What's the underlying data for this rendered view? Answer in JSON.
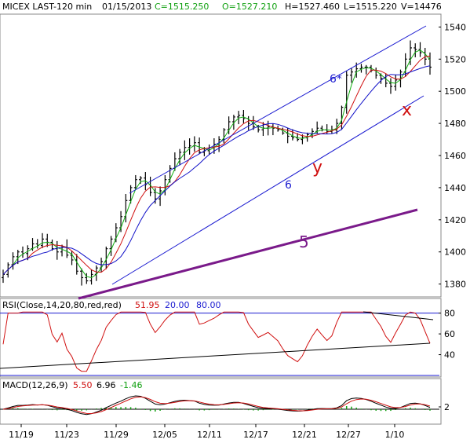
{
  "header": {
    "symbol": "MICEX LAST-120 min",
    "date": "01/15/2013",
    "close": "C=1515.250",
    "open": "O=1527.210",
    "high": "H=1527.460",
    "low": "L=1515.220",
    "volume": "V=14476"
  },
  "colors": {
    "price": "#000000",
    "ma_red": "#d01010",
    "ma_green": "#10b010",
    "ma_blue": "#1010c8",
    "trend_blue": "#1a1ad0",
    "trend_purple": "#7a1a8a",
    "annotation_red": "#d01010",
    "rsi_line": "#d01010",
    "rsi_band": "#1a1ad0",
    "macd_line": "#000000",
    "signal_line": "#d01010",
    "hist": "#10a010",
    "grid": "#888888"
  },
  "rsi": {
    "label": "RSI(Close,14,20,80,red,red)",
    "value": "51.95",
    "low": "20.00",
    "high": "80.00",
    "ticks": [
      "80",
      "60",
      "40"
    ]
  },
  "macd": {
    "label": "MACD(12,26,9)",
    "v1": "5.50",
    "v2": "6.96",
    "v3": "-1.46",
    "ticks": [
      "2"
    ]
  },
  "annotations": {
    "six_star": "6*",
    "six": "6",
    "five": "5",
    "x": "x",
    "y": "y"
  },
  "chart_data": {
    "type": "line",
    "x_labels": [
      "11/19",
      "11/23",
      "11/29",
      "12/05",
      "12/11",
      "12/17",
      "12/21",
      "12/27",
      "1/10"
    ],
    "price": {
      "ylim": [
        1372,
        1548
      ],
      "y_ticks": [
        1380,
        1400,
        1420,
        1440,
        1460,
        1480,
        1500,
        1520,
        1540
      ],
      "close": [
        1386,
        1392,
        1397,
        1400,
        1399,
        1402,
        1405,
        1404,
        1408,
        1406,
        1402,
        1400,
        1403,
        1398,
        1395,
        1388,
        1384,
        1382,
        1386,
        1390,
        1394,
        1402,
        1408,
        1415,
        1422,
        1432,
        1440,
        1445,
        1446,
        1442,
        1437,
        1433,
        1438,
        1445,
        1452,
        1458,
        1462,
        1465,
        1466,
        1468,
        1462,
        1463,
        1465,
        1467,
        1470,
        1476,
        1481,
        1484,
        1485,
        1483,
        1480,
        1478,
        1476,
        1477,
        1478,
        1477,
        1476,
        1474,
        1472,
        1471,
        1470,
        1471,
        1473,
        1475,
        1477,
        1476,
        1475,
        1476,
        1480,
        1490,
        1510,
        1512,
        1514,
        1515,
        1515,
        1513,
        1510,
        1508,
        1505,
        1503,
        1507,
        1512,
        1520,
        1527,
        1526,
        1524,
        1520,
        1515
      ]
    },
    "rsi": {
      "ylim": [
        20,
        82
      ],
      "y_ticks": [
        80,
        60,
        40
      ],
      "band_low": 20,
      "band_high": 80
    },
    "macd": {
      "y_ticks": [
        2
      ]
    }
  }
}
